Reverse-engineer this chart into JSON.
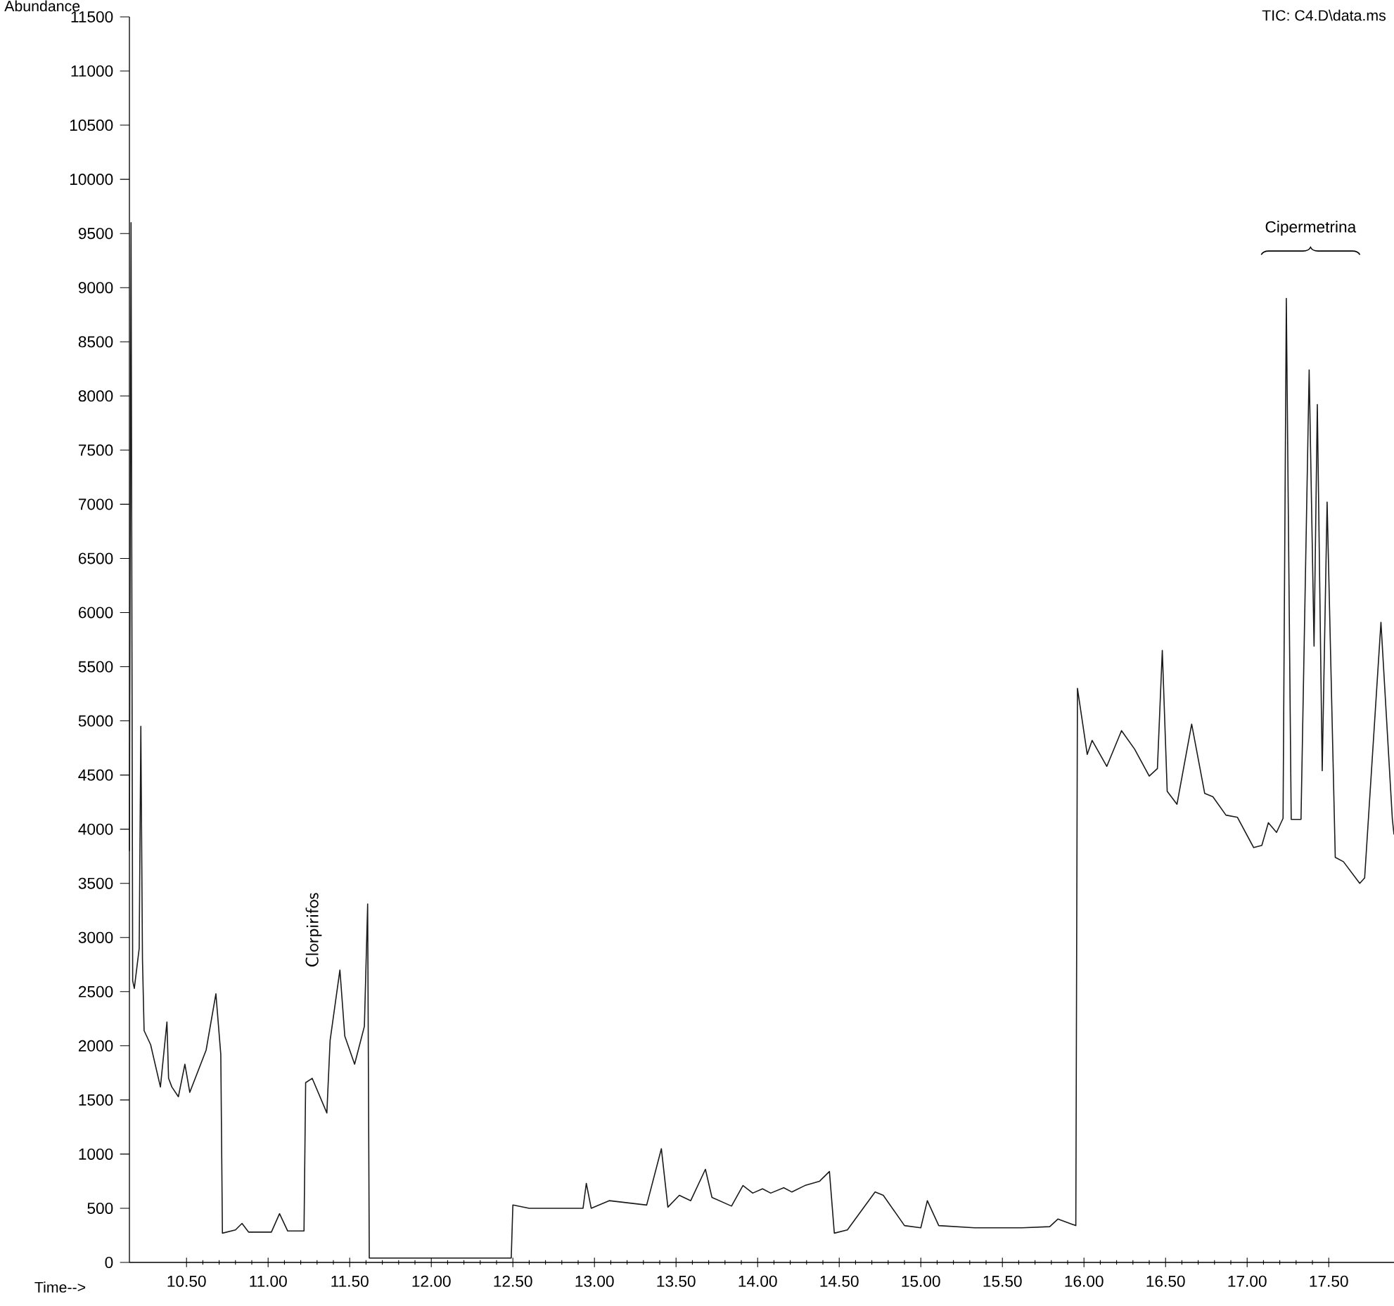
{
  "chart_data": {
    "type": "line",
    "title": "TIC: C4.D\\data.ms",
    "xlabel": "Time-->",
    "ylabel": "Abundance",
    "x": [
      10.15,
      10.16,
      10.17,
      10.18,
      10.21,
      10.22,
      10.23,
      10.24,
      10.28,
      10.34,
      10.38,
      10.39,
      10.41,
      10.45,
      10.49,
      10.52,
      10.62,
      10.68,
      10.71,
      10.72,
      10.8,
      10.84,
      10.88,
      11.02,
      11.07,
      11.12,
      11.22,
      11.23,
      11.27,
      11.36,
      11.38,
      11.44,
      11.47,
      11.53,
      11.59,
      11.61,
      11.62,
      12.49,
      12.5,
      12.6,
      12.93,
      12.95,
      12.98,
      13.09,
      13.32,
      13.41,
      13.45,
      13.52,
      13.59,
      13.68,
      13.72,
      13.84,
      13.91,
      13.97,
      14.03,
      14.08,
      14.16,
      14.21,
      14.29,
      14.38,
      14.44,
      14.47,
      14.55,
      14.72,
      14.77,
      14.9,
      15.0,
      15.04,
      15.11,
      15.33,
      15.62,
      15.79,
      15.84,
      15.95,
      15.96,
      16.02,
      16.05,
      16.14,
      16.23,
      16.31,
      16.4,
      16.45,
      16.48,
      16.51,
      16.57,
      16.66,
      16.74,
      16.79,
      16.87,
      16.94,
      17.04,
      17.09,
      17.13,
      17.18,
      17.22,
      17.24,
      17.27,
      17.33,
      17.38,
      17.41,
      17.43,
      17.46,
      17.49,
      17.54,
      17.59,
      17.69,
      17.72,
      17.82,
      17.89,
      17.9
    ],
    "values": [
      3800,
      9600,
      2600,
      2530,
      2900,
      4950,
      2800,
      2140,
      2010,
      1620,
      2220,
      1700,
      1620,
      1530,
      1830,
      1570,
      1960,
      2480,
      1920,
      270,
      300,
      360,
      280,
      280,
      450,
      290,
      290,
      1660,
      1700,
      1380,
      2050,
      2700,
      2090,
      1830,
      2180,
      3310,
      40,
      40,
      530,
      500,
      500,
      730,
      500,
      570,
      530,
      1050,
      510,
      620,
      570,
      860,
      600,
      520,
      710,
      640,
      680,
      640,
      690,
      650,
      710,
      750,
      840,
      270,
      300,
      650,
      620,
      340,
      320,
      570,
      340,
      320,
      320,
      330,
      400,
      340,
      5300,
      4690,
      4820,
      4580,
      4910,
      4740,
      4490,
      4560,
      5650,
      4350,
      4230,
      4970,
      4330,
      4300,
      4130,
      4110,
      3830,
      3850,
      4060,
      3970,
      4100,
      8900,
      4090,
      4090,
      8240,
      5690,
      7920,
      4540,
      7020,
      3740,
      3700,
      3500,
      3550,
      5910,
      4090,
      3950
    ],
    "color": "#1a1a1a",
    "xlim": [
      10.15,
      17.9
    ],
    "xticks": [
      {
        "value": 10.5,
        "label": "10.50"
      },
      {
        "value": 11.0,
        "label": "11.00"
      },
      {
        "value": 11.5,
        "label": "11.50"
      },
      {
        "value": 12.0,
        "label": "12.00"
      },
      {
        "value": 12.5,
        "label": "12.50"
      },
      {
        "value": 13.0,
        "label": "13.00"
      },
      {
        "value": 13.5,
        "label": "13.50"
      },
      {
        "value": 14.0,
        "label": "14.00"
      },
      {
        "value": 14.5,
        "label": "14.50"
      },
      {
        "value": 15.0,
        "label": "15.00"
      },
      {
        "value": 15.5,
        "label": "15.50"
      },
      {
        "value": 16.0,
        "label": "16.00"
      },
      {
        "value": 16.5,
        "label": "16.50"
      },
      {
        "value": 17.0,
        "label": "17.00"
      },
      {
        "value": 17.5,
        "label": "17.50"
      }
    ],
    "ylim": [
      0,
      11500
    ],
    "yticks": [
      0,
      500,
      1000,
      1500,
      2000,
      2500,
      3000,
      3500,
      4000,
      4500,
      5000,
      5500,
      6000,
      6500,
      7000,
      7500,
      8000,
      8500,
      9000,
      9500,
      10000,
      10500,
      11000,
      11500
    ],
    "annotations": [
      {
        "text": "Clorpirifos",
        "x": 11.44,
        "y": 2700
      },
      "Cipermetrina"
    ],
    "grid": false,
    "marker": "none"
  }
}
